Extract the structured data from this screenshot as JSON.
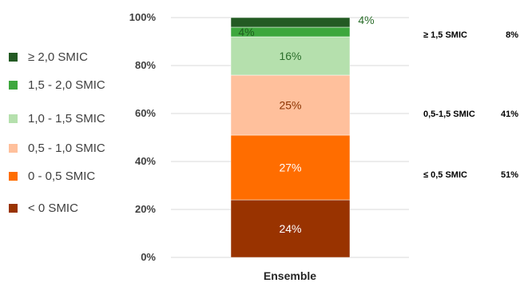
{
  "chart_data": {
    "type": "bar",
    "stacked": true,
    "categories": [
      "Ensemble"
    ],
    "ylim": [
      0,
      100
    ],
    "y_ticks": [
      "0%",
      "20%",
      "40%",
      "60%",
      "80%",
      "100%"
    ],
    "grid": true,
    "legend_position": "left",
    "series": [
      {
        "name": "< 0 SMIC",
        "values": [
          24
        ],
        "label": "24%",
        "color": "#993300",
        "label_color": "#ffffff"
      },
      {
        "name": "0 - 0,5 SMIC",
        "values": [
          27
        ],
        "label": "27%",
        "color": "#ff6d00",
        "label_color": "#ffffff"
      },
      {
        "name": "0,5 - 1,0 SMIC",
        "values": [
          25
        ],
        "label": "25%",
        "color": "#ffc09c",
        "label_color": "#8b3300"
      },
      {
        "name": "1,0 - 1,5 SMIC",
        "values": [
          16
        ],
        "label": "16%",
        "color": "#b5e0ad",
        "label_color": "#2b6e2b"
      },
      {
        "name": "1,5 - 2,0 SMIC",
        "values": [
          4
        ],
        "label": "4%",
        "color": "#3da73d",
        "label_color": "#1f5f1f"
      },
      {
        "name": "≥ 2,0 SMIC",
        "values": [
          4
        ],
        "label": "4%",
        "color": "#235a23",
        "label_color": "#2b6e2b"
      }
    ],
    "side_annotations": [
      {
        "label": "≥ 1,5 SMIC",
        "value": "8%"
      },
      {
        "label": "0,5-1,5 SMIC",
        "value": "41%"
      },
      {
        "label": "≤ 0,5 SMIC",
        "value": "51%"
      }
    ]
  }
}
